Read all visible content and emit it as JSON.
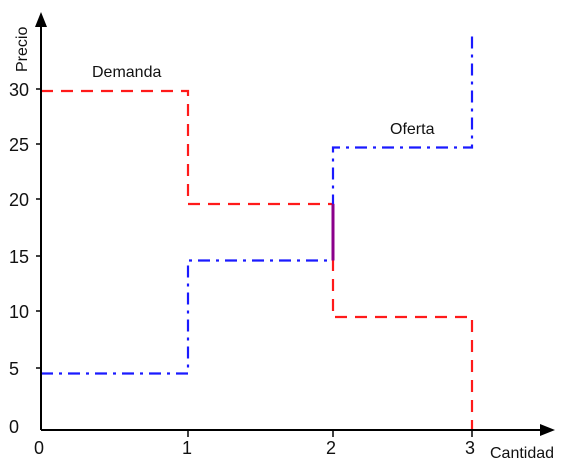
{
  "chart_data": {
    "type": "line",
    "title": "",
    "xlabel": "Cantidad",
    "ylabel": "Precio",
    "xlim": [
      0,
      3
    ],
    "ylim": [
      0,
      30
    ],
    "x_ticks": [
      "0",
      "1",
      "2",
      "3"
    ],
    "y_ticks": [
      "0",
      "5",
      "10",
      "15",
      "20",
      "25",
      "30"
    ],
    "grid": false,
    "series": [
      {
        "name": "Demanda",
        "color": "#ff1a1a",
        "line_style": "dashed",
        "points": [
          [
            0,
            30
          ],
          [
            1,
            30
          ],
          [
            1,
            20
          ],
          [
            2,
            20
          ],
          [
            2,
            10
          ],
          [
            3,
            10
          ],
          [
            3,
            0
          ]
        ]
      },
      {
        "name": "Oferta",
        "color": "#1a1aff",
        "line_style": "dash-dot",
        "points": [
          [
            0,
            5
          ],
          [
            1,
            5
          ],
          [
            1,
            15
          ],
          [
            2,
            15
          ],
          [
            2,
            25
          ],
          [
            3,
            25
          ],
          [
            3,
            35
          ]
        ]
      }
    ],
    "highlight": {
      "color": "#8b008b",
      "points": [
        [
          2,
          15
        ],
        [
          2,
          20
        ]
      ]
    }
  }
}
